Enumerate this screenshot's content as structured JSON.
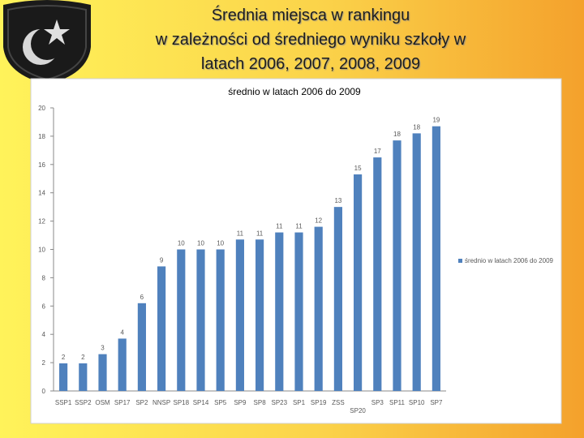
{
  "slide_title": [
    "Średnia miejsca w rankingu",
    "w zależności od średniego wyniku szkoły w",
    "latach 2006, 2007, 2008, 2009"
  ],
  "chart_data": {
    "type": "bar",
    "title": "średnio w latach 2006 do 2009",
    "categories": [
      "SSP1",
      "SSP2",
      "OSM",
      "SP17",
      "SP2",
      "NNSP",
      "SP18",
      "SP14",
      "SP5",
      "SP9",
      "SP8",
      "SP23",
      "SP1",
      "SP19",
      "ZSS",
      "SP20",
      "SP3",
      "SP11",
      "SP10",
      "SP7"
    ],
    "series": [
      {
        "name": "średnio w latach 2006 do 2009",
        "color": "#4f81bd",
        "values": [
          1.95,
          1.95,
          2.6,
          3.7,
          6.2,
          8.8,
          10.0,
          10.0,
          10.0,
          10.7,
          10.7,
          11.2,
          11.2,
          11.6,
          13.0,
          15.3,
          16.5,
          17.7,
          18.2,
          18.7
        ],
        "value_labels": [
          "2",
          "2",
          "3",
          "4",
          "6",
          "9",
          "10",
          "10",
          "10",
          "11",
          "11",
          "11",
          "11",
          "12",
          "13",
          "15",
          "17",
          "18",
          "18",
          "19"
        ]
      }
    ],
    "ylim": [
      0,
      20
    ],
    "yticks": [
      0,
      2,
      4,
      6,
      8,
      10,
      12,
      14,
      16,
      18,
      20
    ],
    "grid": false,
    "legend": "right"
  }
}
